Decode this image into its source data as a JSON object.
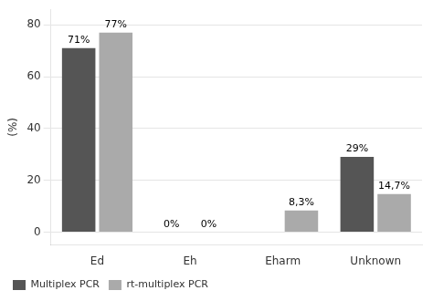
{
  "chart_data": {
    "type": "bar",
    "y_label": "(%)",
    "categories": [
      "Ed",
      "Eh",
      "Eharm",
      "Unknown"
    ],
    "series": [
      {
        "name": "Multiplex PCR",
        "color": "#555555",
        "values": [
          71,
          0,
          0,
          29
        ],
        "value_labels": [
          "71%",
          "0%",
          null,
          "29%"
        ]
      },
      {
        "name": "rt-multiplex PCR",
        "color": "#aaaaaa",
        "values": [
          77,
          0,
          8.3,
          14.7
        ],
        "value_labels": [
          "77%",
          "0%",
          "8,3%",
          "14,7%"
        ]
      }
    ],
    "ylim": [
      -5,
      86
    ],
    "yticks": [
      0,
      20,
      40,
      60,
      80
    ],
    "grid": true,
    "legend": "lower left",
    "data_labels": true
  }
}
